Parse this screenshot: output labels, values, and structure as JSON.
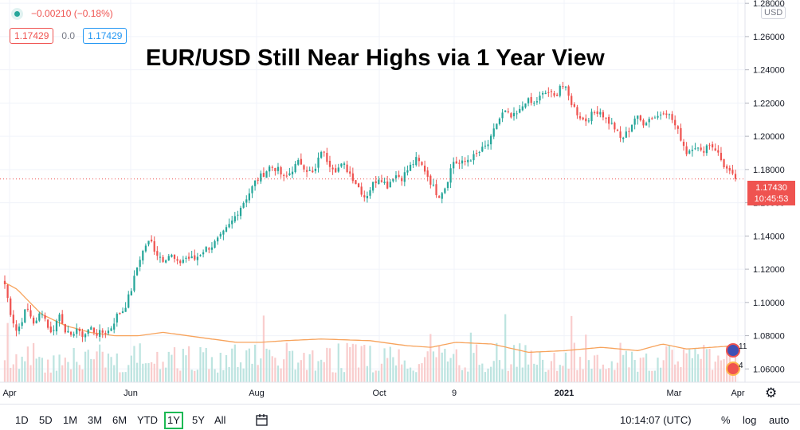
{
  "legend": {
    "change": "−0.00210 (−0.18%)",
    "bid": "1.17429",
    "spread": "0.0",
    "ask": "1.17429"
  },
  "title": "EUR/USD Still Near Highs via 1 Year View",
  "currency": "USD",
  "price_tag": {
    "price": "1.17430",
    "countdown": "10:45:53"
  },
  "event_badges": {
    "upper": "11",
    "lower": "4"
  },
  "timeframes": [
    {
      "label": "1D",
      "active": false
    },
    {
      "label": "5D",
      "active": false
    },
    {
      "label": "1M",
      "active": false
    },
    {
      "label": "3M",
      "active": false
    },
    {
      "label": "6M",
      "active": false
    },
    {
      "label": "YTD",
      "active": false
    },
    {
      "label": "1Y",
      "active": true
    },
    {
      "label": "5Y",
      "active": false
    },
    {
      "label": "All",
      "active": false
    }
  ],
  "clock": "10:14:07 (UTC)",
  "options": {
    "percent": "%",
    "log": "log",
    "auto": "auto"
  },
  "colors": {
    "up": "#26a69a",
    "down": "#ef5350",
    "ma": "#f7a35c",
    "grid": "#f0f3fa"
  },
  "chart_data": {
    "type": "candlestick",
    "title": "EUR/USD Still Near Highs via 1 Year View",
    "x_ticks": [
      "Apr",
      "Jun",
      "Aug",
      "Oct",
      "9",
      "2021",
      "Mar",
      "Apr"
    ],
    "y_ticks": [
      "1.06000",
      "1.08000",
      "1.10000",
      "1.12000",
      "1.14000",
      "1.16000",
      "1.18000",
      "1.20000",
      "1.22000",
      "1.24000",
      "1.26000",
      "1.28000"
    ],
    "ylim": [
      1.052,
      1.282
    ],
    "last_price": 1.1743,
    "anchors": [
      [
        0,
        1.111
      ],
      [
        5,
        1.093
      ],
      [
        10,
        1.082
      ],
      [
        18,
        1.097
      ],
      [
        25,
        1.086
      ],
      [
        30,
        1.096
      ],
      [
        38,
        1.081
      ],
      [
        45,
        1.093
      ],
      [
        50,
        1.083
      ],
      [
        55,
        1.078
      ],
      [
        58,
        1.086
      ],
      [
        62,
        1.08
      ],
      [
        66,
        1.081
      ],
      [
        70,
        1.085
      ],
      [
        73,
        1.083
      ],
      [
        76,
        1.081
      ],
      [
        80,
        1.082
      ],
      [
        86,
        1.083
      ],
      [
        92,
        1.092
      ],
      [
        98,
        1.096
      ],
      [
        104,
        1.108
      ],
      [
        110,
        1.125
      ],
      [
        116,
        1.135
      ],
      [
        120,
        1.137
      ],
      [
        124,
        1.13
      ],
      [
        130,
        1.126
      ],
      [
        136,
        1.129
      ],
      [
        142,
        1.123
      ],
      [
        148,
        1.127
      ],
      [
        156,
        1.126
      ],
      [
        164,
        1.132
      ],
      [
        170,
        1.134
      ],
      [
        178,
        1.14
      ],
      [
        186,
        1.148
      ],
      [
        194,
        1.158
      ],
      [
        200,
        1.165
      ],
      [
        206,
        1.173
      ],
      [
        212,
        1.177
      ],
      [
        218,
        1.182
      ],
      [
        224,
        1.18
      ],
      [
        230,
        1.174
      ],
      [
        236,
        1.18
      ],
      [
        242,
        1.185
      ],
      [
        248,
        1.18
      ],
      [
        254,
        1.177
      ],
      [
        260,
        1.192
      ],
      [
        266,
        1.184
      ],
      [
        272,
        1.18
      ],
      [
        278,
        1.183
      ],
      [
        284,
        1.177
      ],
      [
        290,
        1.17
      ],
      [
        296,
        1.163
      ],
      [
        302,
        1.171
      ],
      [
        308,
        1.176
      ],
      [
        314,
        1.17
      ],
      [
        320,
        1.177
      ],
      [
        326,
        1.175
      ],
      [
        332,
        1.181
      ],
      [
        338,
        1.186
      ],
      [
        344,
        1.181
      ],
      [
        350,
        1.172
      ],
      [
        356,
        1.164
      ],
      [
        362,
        1.17
      ],
      [
        368,
        1.185
      ],
      [
        374,
        1.183
      ],
      [
        380,
        1.186
      ],
      [
        386,
        1.188
      ],
      [
        392,
        1.192
      ],
      [
        398,
        1.196
      ],
      [
        404,
        1.208
      ],
      [
        410,
        1.215
      ],
      [
        416,
        1.211
      ],
      [
        422,
        1.214
      ],
      [
        428,
        1.222
      ],
      [
        434,
        1.219
      ],
      [
        440,
        1.224
      ],
      [
        446,
        1.227
      ],
      [
        452,
        1.223
      ],
      [
        456,
        1.231
      ],
      [
        460,
        1.229
      ],
      [
        464,
        1.222
      ],
      [
        470,
        1.214
      ],
      [
        476,
        1.209
      ],
      [
        482,
        1.213
      ],
      [
        488,
        1.216
      ],
      [
        494,
        1.21
      ],
      [
        500,
        1.206
      ],
      [
        506,
        1.198
      ],
      [
        512,
        1.203
      ],
      [
        518,
        1.212
      ],
      [
        524,
        1.208
      ],
      [
        530,
        1.211
      ],
      [
        536,
        1.212
      ],
      [
        542,
        1.216
      ],
      [
        548,
        1.21
      ],
      [
        554,
        1.201
      ],
      [
        560,
        1.19
      ],
      [
        566,
        1.195
      ],
      [
        572,
        1.19
      ],
      [
        578,
        1.196
      ],
      [
        584,
        1.192
      ],
      [
        590,
        1.183
      ],
      [
        596,
        1.177
      ],
      [
        600,
        1.174
      ]
    ],
    "ma_anchors": [
      [
        0,
        1.112
      ],
      [
        10,
        1.108
      ],
      [
        30,
        1.093
      ],
      [
        50,
        1.086
      ],
      [
        70,
        1.082
      ],
      [
        90,
        1.08
      ],
      [
        110,
        1.08
      ],
      [
        130,
        1.082
      ],
      [
        150,
        1.08
      ],
      [
        170,
        1.078
      ],
      [
        190,
        1.076
      ],
      [
        210,
        1.076
      ],
      [
        230,
        1.077
      ],
      [
        260,
        1.078
      ],
      [
        300,
        1.077
      ],
      [
        330,
        1.074
      ],
      [
        350,
        1.073
      ],
      [
        370,
        1.076
      ],
      [
        400,
        1.075
      ],
      [
        430,
        1.07
      ],
      [
        460,
        1.071
      ],
      [
        490,
        1.073
      ],
      [
        520,
        1.071
      ],
      [
        540,
        1.075
      ],
      [
        560,
        1.072
      ],
      [
        580,
        1.073
      ],
      [
        600,
        1.074
      ]
    ]
  }
}
